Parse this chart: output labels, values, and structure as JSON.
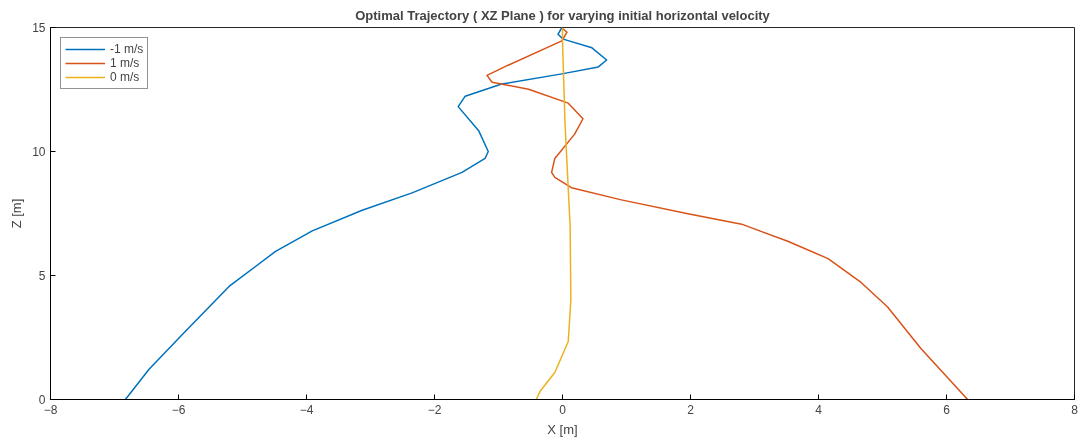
{
  "chart_data": {
    "type": "line",
    "title": "Optimal Trajectory ( XZ Plane ) for varying initial horizontal velocity",
    "xlabel": "X [m]",
    "ylabel": "Z [m]",
    "xlim": [
      -8,
      8
    ],
    "ylim": [
      0,
      15
    ],
    "xticks": [
      -8,
      -6,
      -4,
      -2,
      0,
      2,
      4,
      6,
      8
    ],
    "yticks": [
      0,
      5,
      10,
      15
    ],
    "grid": false,
    "legend": "top left",
    "series": [
      {
        "name": "-1 m/s",
        "color": "#0072bd",
        "x": [
          -6.83,
          -6.46,
          -5.94,
          -5.21,
          -4.49,
          -3.91,
          -3.13,
          -2.35,
          -1.57,
          -1.21,
          -1.16,
          -1.31,
          -1.63,
          -1.52,
          -0.95,
          -0.01,
          0.56,
          0.69,
          0.46,
          0.01,
          -0.07,
          -0.01
        ],
        "values": [
          0,
          1.22,
          2.62,
          4.56,
          5.96,
          6.8,
          7.63,
          8.33,
          9.16,
          9.72,
          10.0,
          10.84,
          11.81,
          12.23,
          12.72,
          13.13,
          13.41,
          13.69,
          14.18,
          14.53,
          14.73,
          14.99
        ]
      },
      {
        "name": "1 m/s",
        "color": "#d95319",
        "x": [
          6.33,
          5.6,
          5.08,
          4.67,
          4.15,
          3.52,
          2.8,
          1.96,
          0.92,
          0.14,
          -0.12,
          -0.17,
          -0.12,
          0.19,
          0.32,
          0.09,
          -0.53,
          -1.1,
          -1.18,
          -0.85,
          -0.01,
          0.07,
          -0.01
        ],
        "values": [
          0,
          2.06,
          3.73,
          4.71,
          5.68,
          6.38,
          7.07,
          7.49,
          8.05,
          8.54,
          8.96,
          9.16,
          9.72,
          10.7,
          11.32,
          11.95,
          12.51,
          12.79,
          13.07,
          13.48,
          14.46,
          14.81,
          14.99
        ]
      },
      {
        "name": "0 m/s",
        "color": "#edb120",
        "x": [
          -0.41,
          -0.35,
          -0.12,
          0.09,
          0.13,
          0.12,
          0.04,
          0.0,
          0.0
        ],
        "values": [
          0,
          0.33,
          1.09,
          2.34,
          4.0,
          6.94,
          11.1,
          14.46,
          14.99
        ]
      }
    ]
  }
}
